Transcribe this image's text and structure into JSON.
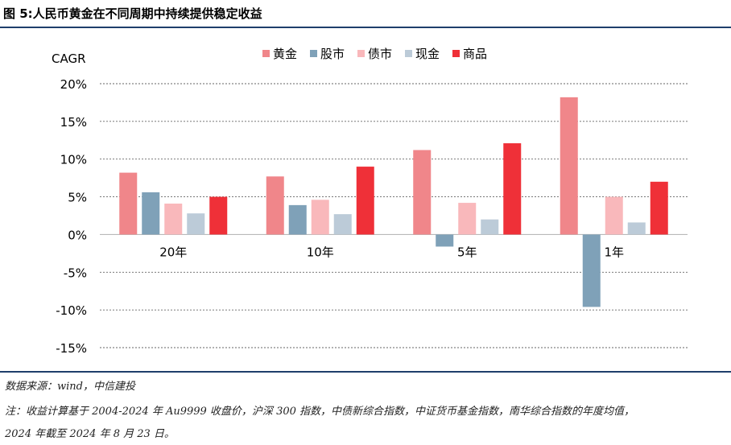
{
  "figure": {
    "title": "图 5:人民币黄金在不同周期中持续提供稳定收益",
    "source": "数据来源：wind，中信建投",
    "note_line1": "注：收益计算基于 2004-2024 年 Au9999 收盘价，沪深 300 指数，中债新综合指数，中证货币基金指数，南华综合指数的年度均值，",
    "note_line2": "2024 年截至 2024 年 8 月 23 日。"
  },
  "chart_data": {
    "type": "bar",
    "ylabel": "CAGR",
    "categories": [
      "20年",
      "10年",
      "5年",
      "1年"
    ],
    "ylim": [
      -15,
      20
    ],
    "yticks": [
      20,
      15,
      10,
      5,
      0,
      -5,
      -10,
      -15
    ],
    "ytick_labels": [
      "20%",
      "15%",
      "10%",
      "5%",
      "0%",
      "-5%",
      "-10%",
      "-15%"
    ],
    "grid": true,
    "legend_position": "top-center",
    "series": [
      {
        "name": "黄金",
        "color": "#f0868a",
        "values": [
          8.2,
          7.7,
          11.2,
          18.2
        ]
      },
      {
        "name": "股市",
        "color": "#7fa1b8",
        "values": [
          5.6,
          3.9,
          -1.6,
          -9.6
        ]
      },
      {
        "name": "债市",
        "color": "#f9b8bb",
        "values": [
          4.1,
          4.6,
          4.2,
          5.0
        ]
      },
      {
        "name": "现金",
        "color": "#bccbd8",
        "values": [
          2.8,
          2.7,
          2.0,
          1.6
        ]
      },
      {
        "name": "商品",
        "color": "#ef3038",
        "values": [
          5.0,
          9.0,
          12.1,
          7.0
        ]
      }
    ]
  }
}
